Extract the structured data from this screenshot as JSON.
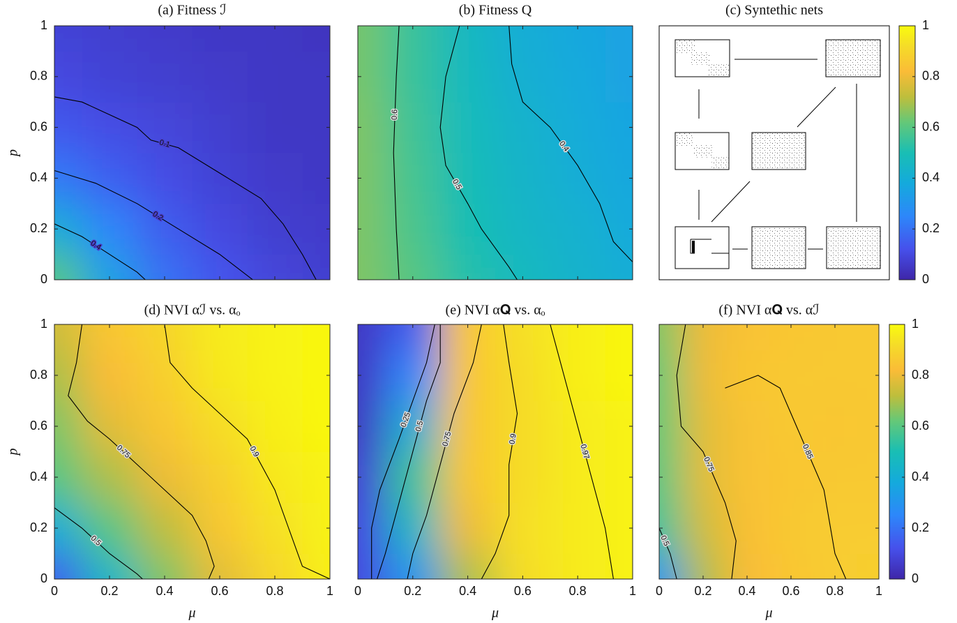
{
  "chart_data": [
    {
      "type": "heatmap",
      "title": "(a) Fitness ℐ",
      "ylabel": "p",
      "colormap": "parula",
      "x": [
        0,
        0.2,
        0.4,
        0.6,
        0.8,
        1
      ],
      "y": [
        0,
        0.2,
        0.4,
        0.6,
        0.8,
        1
      ],
      "z": [
        [
          0.6,
          0.35,
          0.2,
          0.13,
          0.09,
          0.07
        ],
        [
          0.4,
          0.25,
          0.15,
          0.1,
          0.07,
          0.06
        ],
        [
          0.22,
          0.16,
          0.11,
          0.08,
          0.06,
          0.05
        ],
        [
          0.14,
          0.11,
          0.09,
          0.07,
          0.05,
          0.05
        ],
        [
          0.1,
          0.08,
          0.07,
          0.06,
          0.05,
          0.05
        ],
        [
          0.08,
          0.07,
          0.06,
          0.05,
          0.05,
          0.04
        ]
      ],
      "zlim": [
        0,
        1
      ],
      "xlim": [
        0,
        1
      ],
      "ylim": [
        0,
        1
      ],
      "xticks": [
        0,
        0.2,
        0.4,
        0.6,
        0.8,
        1
      ],
      "yticks": [
        0,
        0.2,
        0.4,
        0.6,
        0.8,
        1
      ],
      "contours": [
        {
          "level": 0.1,
          "x": [
            0,
            0.1,
            0.2,
            0.3,
            0.35,
            0.45,
            0.6,
            0.75,
            0.83,
            0.9,
            0.95
          ],
          "y": [
            0.72,
            0.7,
            0.65,
            0.6,
            0.55,
            0.52,
            0.42,
            0.32,
            0.22,
            0.1,
            0
          ]
        },
        {
          "level": 0.2,
          "x": [
            0,
            0.15,
            0.3,
            0.45,
            0.6,
            0.72
          ],
          "y": [
            0.43,
            0.38,
            0.3,
            0.2,
            0.1,
            0
          ]
        },
        {
          "level": 0.4,
          "x": [
            0,
            0.1,
            0.2,
            0.3,
            0.33
          ],
          "y": [
            0.22,
            0.17,
            0.1,
            0.03,
            0
          ]
        }
      ]
    },
    {
      "type": "heatmap",
      "title": "(b) Fitness Q",
      "colormap": "parula",
      "x": [
        0,
        0.2,
        0.4,
        0.6,
        0.8,
        1
      ],
      "y": [
        0,
        0.2,
        0.4,
        0.6,
        0.8,
        1
      ],
      "z": [
        [
          0.65,
          0.6,
          0.52,
          0.47,
          0.43,
          0.4
        ],
        [
          0.65,
          0.58,
          0.5,
          0.45,
          0.42,
          0.38
        ],
        [
          0.65,
          0.57,
          0.49,
          0.44,
          0.4,
          0.37
        ],
        [
          0.65,
          0.56,
          0.48,
          0.43,
          0.39,
          0.36
        ],
        [
          0.64,
          0.55,
          0.47,
          0.41,
          0.38,
          0.35
        ],
        [
          0.64,
          0.55,
          0.46,
          0.4,
          0.37,
          0.35
        ]
      ],
      "zlim": [
        0,
        1
      ],
      "xlim": [
        0,
        1
      ],
      "ylim": [
        0,
        1
      ],
      "xticks": [
        0,
        0.2,
        0.4,
        0.6,
        0.8,
        1
      ],
      "yticks": [
        0,
        0.2,
        0.4,
        0.6,
        0.8,
        1
      ],
      "contours": [
        {
          "level": 0.6,
          "x": [
            0.15,
            0.14,
            0.13,
            0.14,
            0.15
          ],
          "y": [
            1,
            0.8,
            0.5,
            0.2,
            0
          ]
        },
        {
          "level": 0.5,
          "x": [
            0.37,
            0.32,
            0.3,
            0.32,
            0.4,
            0.45,
            0.55,
            0.58
          ],
          "y": [
            1,
            0.8,
            0.6,
            0.45,
            0.3,
            0.2,
            0.05,
            0
          ]
        },
        {
          "level": 0.4,
          "x": [
            0.55,
            0.56,
            0.6,
            0.7,
            0.8,
            0.88,
            0.93,
            1
          ],
          "y": [
            1,
            0.85,
            0.7,
            0.6,
            0.45,
            0.3,
            0.15,
            0.07
          ]
        }
      ]
    },
    {
      "type": "diagram",
      "title": "(c) Syntethic nets",
      "colorbar": {
        "ylim": [
          0,
          1
        ],
        "yticks": [
          0,
          0.2,
          0.4,
          0.6,
          0.8,
          1
        ]
      }
    },
    {
      "type": "heatmap",
      "title": "(d) NVI αℐ vs. αₒ",
      "xlabel": "μ",
      "ylabel": "p",
      "colormap": "parula",
      "x": [
        0,
        0.2,
        0.4,
        0.6,
        0.8,
        1
      ],
      "y": [
        0,
        0.2,
        0.4,
        0.6,
        0.8,
        1
      ],
      "z": [
        [
          0.15,
          0.45,
          0.65,
          0.78,
          0.9,
          0.97
        ],
        [
          0.4,
          0.6,
          0.72,
          0.85,
          0.93,
          0.98
        ],
        [
          0.6,
          0.7,
          0.8,
          0.88,
          0.95,
          0.98
        ],
        [
          0.65,
          0.78,
          0.85,
          0.92,
          0.97,
          0.99
        ],
        [
          0.7,
          0.82,
          0.88,
          0.95,
          0.98,
          0.99
        ],
        [
          0.75,
          0.85,
          0.9,
          0.96,
          0.98,
          0.99
        ]
      ],
      "zlim": [
        0,
        1
      ],
      "xlim": [
        0,
        1
      ],
      "ylim": [
        0,
        1
      ],
      "xticks": [
        0,
        0.2,
        0.4,
        0.6,
        0.8,
        1
      ],
      "yticks": [
        0,
        0.2,
        0.4,
        0.6,
        0.8,
        1
      ],
      "contours": [
        {
          "level": 0.9,
          "x": [
            0.4,
            0.42,
            0.5,
            0.6,
            0.7,
            0.75,
            0.8,
            0.85,
            0.9,
            1
          ],
          "y": [
            1,
            0.85,
            0.75,
            0.65,
            0.55,
            0.45,
            0.35,
            0.2,
            0.05,
            0
          ]
        },
        {
          "level": 0.75,
          "x": [
            0.1,
            0.08,
            0.05,
            0.12,
            0.2,
            0.3,
            0.4,
            0.5,
            0.55,
            0.58,
            0.56
          ],
          "y": [
            1,
            0.85,
            0.72,
            0.62,
            0.55,
            0.45,
            0.35,
            0.25,
            0.15,
            0.05,
            0
          ]
        },
        {
          "level": 0.5,
          "x": [
            0,
            0.1,
            0.2,
            0.3,
            0.32
          ],
          "y": [
            0.28,
            0.2,
            0.1,
            0.02,
            0
          ]
        }
      ]
    },
    {
      "type": "heatmap",
      "title": "(e) NVI α𝐐 vs. αₒ",
      "xlabel": "μ",
      "colormap": "parula",
      "x": [
        0,
        0.2,
        0.4,
        0.6,
        0.8,
        1
      ],
      "y": [
        0,
        0.2,
        0.4,
        0.6,
        0.8,
        1
      ],
      "z": [
        [
          0.1,
          0.3,
          0.7,
          0.92,
          0.96,
          0.98
        ],
        [
          0.1,
          0.45,
          0.8,
          0.93,
          0.96,
          0.98
        ],
        [
          0.08,
          0.55,
          0.85,
          0.92,
          0.96,
          0.98
        ],
        [
          0.05,
          0.4,
          0.85,
          0.92,
          0.96,
          0.98
        ],
        [
          0.05,
          0.25,
          0.85,
          0.92,
          0.97,
          0.99
        ],
        [
          0.05,
          0.15,
          0.85,
          0.93,
          0.97,
          0.99
        ]
      ],
      "zlim": [
        0,
        1
      ],
      "xlim": [
        0,
        1
      ],
      "ylim": [
        0,
        1
      ],
      "xticks": [
        0,
        0.2,
        0.4,
        0.6,
        0.8,
        1
      ],
      "yticks": [
        0,
        0.2,
        0.4,
        0.6,
        0.8,
        1
      ],
      "contours": [
        {
          "level": 0.25,
          "x": [
            0.28,
            0.25,
            0.2,
            0.15,
            0.08,
            0.05,
            0.05
          ],
          "y": [
            1,
            0.85,
            0.7,
            0.55,
            0.35,
            0.2,
            0
          ]
        },
        {
          "level": 0.5,
          "x": [
            0.3,
            0.3,
            0.25,
            0.2,
            0.15,
            0.1,
            0.07
          ],
          "y": [
            1,
            0.85,
            0.7,
            0.5,
            0.3,
            0.1,
            0
          ]
        },
        {
          "level": 0.75,
          "x": [
            0.45,
            0.42,
            0.35,
            0.3,
            0.25,
            0.2,
            0.18
          ],
          "y": [
            1,
            0.85,
            0.65,
            0.45,
            0.25,
            0.1,
            0
          ]
        },
        {
          "level": 0.9,
          "x": [
            0.53,
            0.55,
            0.58,
            0.55,
            0.55,
            0.5,
            0.45
          ],
          "y": [
            1,
            0.85,
            0.65,
            0.45,
            0.25,
            0.1,
            0
          ]
        },
        {
          "level": 0.97,
          "x": [
            0.7,
            0.75,
            0.8,
            0.85,
            0.9,
            0.93
          ],
          "y": [
            1,
            0.8,
            0.6,
            0.4,
            0.2,
            0
          ]
        }
      ]
    },
    {
      "type": "heatmap",
      "title": "(f) NVI α𝐐 vs. αℐ",
      "xlabel": "μ",
      "colormap": "parula",
      "x": [
        0,
        0.2,
        0.4,
        0.6,
        0.8,
        1
      ],
      "y": [
        0,
        0.2,
        0.4,
        0.6,
        0.8,
        1
      ],
      "z": [
        [
          0.3,
          0.7,
          0.82,
          0.85,
          0.87,
          0.88
        ],
        [
          0.55,
          0.75,
          0.83,
          0.86,
          0.87,
          0.87
        ],
        [
          0.6,
          0.78,
          0.84,
          0.85,
          0.86,
          0.86
        ],
        [
          0.62,
          0.78,
          0.84,
          0.86,
          0.85,
          0.86
        ],
        [
          0.62,
          0.8,
          0.85,
          0.86,
          0.86,
          0.86
        ],
        [
          0.65,
          0.8,
          0.84,
          0.85,
          0.86,
          0.86
        ]
      ],
      "zlim": [
        0,
        1
      ],
      "xlim": [
        0,
        1
      ],
      "ylim": [
        0,
        1
      ],
      "xticks": [
        0,
        0.2,
        0.4,
        0.6,
        0.8,
        1
      ],
      "yticks": [
        0,
        0.2,
        0.4,
        0.6,
        0.8,
        1
      ],
      "contours": [
        {
          "level": 0.75,
          "x": [
            0.12,
            0.08,
            0.1,
            0.2,
            0.25,
            0.3,
            0.35,
            0.33
          ],
          "y": [
            1,
            0.8,
            0.6,
            0.5,
            0.4,
            0.3,
            0.15,
            0
          ]
        },
        {
          "level": 0.85,
          "x": [
            0.3,
            0.45,
            0.55,
            0.6,
            0.65,
            0.7,
            0.75,
            0.78,
            0.8,
            0.85
          ],
          "y": [
            0.75,
            0.8,
            0.75,
            0.65,
            0.55,
            0.45,
            0.35,
            0.2,
            0.1,
            0
          ]
        },
        {
          "level": 0.5,
          "x": [
            0,
            0.05,
            0.08
          ],
          "y": [
            0.2,
            0.1,
            0
          ]
        }
      ],
      "colorbar": {
        "ylim": [
          0,
          1
        ],
        "yticks": [
          0,
          0.2,
          0.4,
          0.6,
          0.8,
          1
        ]
      }
    }
  ]
}
